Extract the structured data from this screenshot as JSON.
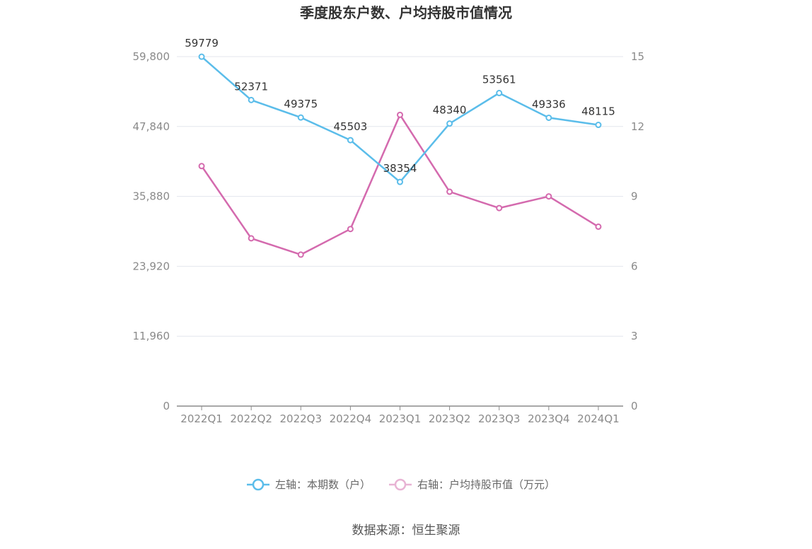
{
  "chart_data": {
    "type": "line",
    "title": "季度股东户数、户均持股市值情况",
    "categories": [
      "2022Q1",
      "2022Q2",
      "2022Q3",
      "2022Q4",
      "2023Q1",
      "2023Q2",
      "2023Q3",
      "2023Q4",
      "2024Q1"
    ],
    "left_axis": {
      "ticks": [
        "0",
        "11,960",
        "23,920",
        "35,880",
        "47,840",
        "59,800"
      ],
      "ylim": [
        0,
        59800
      ]
    },
    "right_axis": {
      "ticks": [
        "0",
        "3",
        "6",
        "9",
        "12",
        "15"
      ],
      "ylim": [
        0,
        15
      ]
    },
    "series": [
      {
        "name": "左轴：本期数（户）",
        "axis": "left",
        "color": "#5bbdea",
        "values": [
          59779,
          52371,
          49375,
          45503,
          38354,
          48340,
          53561,
          49336,
          48115
        ],
        "labels": [
          "59779",
          "52371",
          "49375",
          "45503",
          "38354",
          "48340",
          "53561",
          "49336",
          "48115"
        ]
      },
      {
        "name": "右轴：户均持股市值（万元）",
        "axis": "right",
        "color": "#d46aae",
        "legend_color": "#e8b3d4",
        "values": [
          10.3,
          7.2,
          6.5,
          7.6,
          12.5,
          9.2,
          8.5,
          9.0,
          7.7
        ]
      }
    ],
    "grid": true,
    "legend_position": "bottom"
  },
  "source": "数据来源：恒生聚源"
}
